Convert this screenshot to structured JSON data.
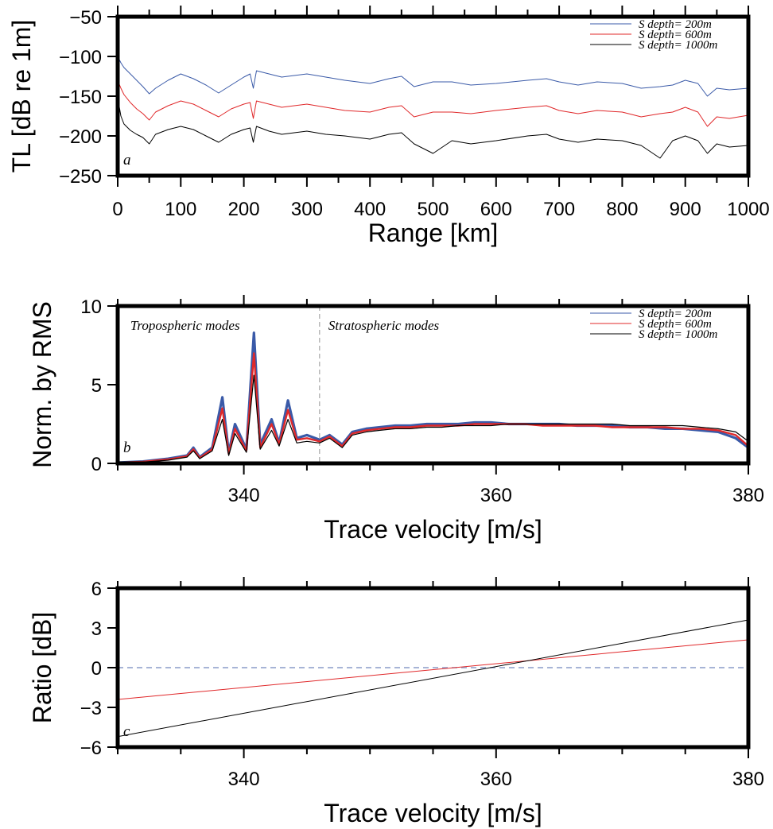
{
  "colors": {
    "blue": "#3a5aa8",
    "red": "#e0282a",
    "black": "#000000",
    "zero": "#8a9cc8",
    "divider": "#b8b8b8"
  },
  "chart_data": [
    {
      "type": "line",
      "panel_label": "a",
      "xlabel": "Range [km]",
      "ylabel": "TL [dB re 1m]",
      "xlim": [
        0,
        1000
      ],
      "ylim": [
        -250,
        -50
      ],
      "xticks": [
        0,
        100,
        200,
        300,
        400,
        500,
        600,
        700,
        800,
        900,
        1000
      ],
      "yticks": [
        -250,
        -200,
        -150,
        -100,
        -50
      ],
      "legend_position": "top-right",
      "series": [
        {
          "name": "S depth= 200m",
          "color": "blue",
          "x": [
            0,
            5,
            10,
            20,
            30,
            40,
            50,
            60,
            80,
            100,
            120,
            140,
            160,
            180,
            200,
            210,
            215,
            220,
            240,
            260,
            280,
            300,
            330,
            360,
            400,
            430,
            450,
            470,
            500,
            530,
            560,
            600,
            650,
            680,
            700,
            730,
            760,
            800,
            830,
            860,
            880,
            900,
            920,
            935,
            950,
            970,
            1000
          ],
          "y": [
            -100,
            -108,
            -114,
            -122,
            -130,
            -138,
            -147,
            -140,
            -130,
            -122,
            -128,
            -136,
            -146,
            -136,
            -126,
            -122,
            -140,
            -118,
            -122,
            -126,
            -124,
            -122,
            -126,
            -130,
            -134,
            -128,
            -125,
            -138,
            -132,
            -132,
            -136,
            -134,
            -130,
            -128,
            -132,
            -136,
            -132,
            -134,
            -140,
            -138,
            -136,
            -130,
            -134,
            -150,
            -140,
            -142,
            -140
          ]
        },
        {
          "name": "S depth= 600m",
          "color": "red",
          "x": [
            0,
            5,
            10,
            20,
            30,
            40,
            50,
            60,
            80,
            100,
            120,
            140,
            160,
            180,
            200,
            210,
            215,
            220,
            240,
            260,
            280,
            300,
            330,
            360,
            400,
            430,
            450,
            470,
            500,
            530,
            560,
            600,
            650,
            680,
            700,
            730,
            760,
            800,
            830,
            860,
            880,
            900,
            920,
            935,
            950,
            970,
            1000
          ],
          "y": [
            -130,
            -140,
            -148,
            -158,
            -166,
            -172,
            -180,
            -170,
            -162,
            -156,
            -160,
            -168,
            -176,
            -166,
            -160,
            -158,
            -178,
            -156,
            -160,
            -164,
            -162,
            -160,
            -164,
            -168,
            -170,
            -164,
            -162,
            -176,
            -170,
            -170,
            -172,
            -168,
            -164,
            -162,
            -168,
            -172,
            -168,
            -170,
            -176,
            -172,
            -170,
            -164,
            -170,
            -188,
            -176,
            -178,
            -174
          ]
        },
        {
          "name": "S depth= 1000m",
          "color": "black",
          "x": [
            0,
            5,
            10,
            20,
            30,
            40,
            50,
            60,
            80,
            100,
            120,
            140,
            160,
            180,
            200,
            210,
            215,
            220,
            240,
            260,
            280,
            300,
            330,
            360,
            400,
            430,
            450,
            470,
            500,
            530,
            560,
            600,
            650,
            680,
            700,
            730,
            760,
            800,
            830,
            860,
            880,
            900,
            920,
            935,
            950,
            970,
            1000
          ],
          "y": [
            -152,
            -175,
            -185,
            -193,
            -198,
            -202,
            -210,
            -198,
            -192,
            -188,
            -192,
            -200,
            -208,
            -198,
            -192,
            -190,
            -208,
            -188,
            -194,
            -198,
            -196,
            -194,
            -198,
            -200,
            -204,
            -198,
            -196,
            -210,
            -222,
            -206,
            -210,
            -206,
            -200,
            -198,
            -204,
            -208,
            -204,
            -206,
            -212,
            -228,
            -206,
            -200,
            -206,
            -222,
            -210,
            -214,
            -212
          ]
        }
      ]
    },
    {
      "type": "line",
      "panel_label": "b",
      "xlabel": "Trace velocity [m/s]",
      "ylabel": "Norm. by RMS",
      "xlim": [
        330,
        380
      ],
      "ylim": [
        0,
        10
      ],
      "xticks": [
        340,
        360,
        380
      ],
      "yticks": [
        0,
        5,
        10
      ],
      "legend_position": "top-right",
      "annotations": [
        {
          "text": "Tropospheric modes",
          "x": 331,
          "y": 8.8
        },
        {
          "text": "Stratospheric modes",
          "x": 346.7,
          "y": 8.8
        }
      ],
      "divider_x": 346,
      "series": [
        {
          "name": "S depth= 200m",
          "color": "blue",
          "x": [
            330,
            332,
            334,
            335.5,
            336,
            336.5,
            337.5,
            338.3,
            338.8,
            339.3,
            340.2,
            340.8,
            341.3,
            342.2,
            342.8,
            343.5,
            344.2,
            345,
            346,
            346.8,
            347.8,
            348.6,
            349.7,
            350.8,
            352,
            353.2,
            354.5,
            355.7,
            357,
            358.3,
            359.6,
            361,
            362.3,
            363.7,
            365,
            366.4,
            367.8,
            369.2,
            370.6,
            372,
            373.4,
            374.8,
            376.2,
            377.6,
            379,
            380
          ],
          "y": [
            0.05,
            0.12,
            0.3,
            0.5,
            1.0,
            0.4,
            1.0,
            4.2,
            0.7,
            2.5,
            0.9,
            8.3,
            1.2,
            2.8,
            1.3,
            4.0,
            1.6,
            1.8,
            1.5,
            1.8,
            1.2,
            2.0,
            2.2,
            2.3,
            2.4,
            2.4,
            2.5,
            2.5,
            2.5,
            2.6,
            2.6,
            2.5,
            2.5,
            2.5,
            2.5,
            2.4,
            2.4,
            2.4,
            2.3,
            2.3,
            2.2,
            2.2,
            2.1,
            2.0,
            1.6,
            1.0
          ]
        },
        {
          "name": "S depth= 600m",
          "color": "red",
          "x": [
            330,
            332,
            334,
            335.5,
            336,
            336.5,
            337.5,
            338.3,
            338.8,
            339.3,
            340.2,
            340.8,
            341.3,
            342.2,
            342.8,
            343.5,
            344.2,
            345,
            346,
            346.8,
            347.8,
            348.6,
            349.7,
            350.8,
            352,
            353.2,
            354.5,
            355.7,
            357,
            358.3,
            359.6,
            361,
            362.3,
            363.7,
            365,
            366.4,
            367.8,
            369.2,
            370.6,
            372,
            373.4,
            374.8,
            376.2,
            377.6,
            379,
            380
          ],
          "y": [
            0.05,
            0.1,
            0.25,
            0.45,
            0.9,
            0.35,
            0.9,
            3.5,
            0.6,
            2.2,
            0.8,
            7.0,
            1.0,
            2.5,
            1.2,
            3.4,
            1.5,
            1.6,
            1.4,
            1.7,
            1.1,
            1.9,
            2.1,
            2.2,
            2.3,
            2.3,
            2.4,
            2.4,
            2.4,
            2.5,
            2.5,
            2.5,
            2.5,
            2.4,
            2.4,
            2.4,
            2.4,
            2.3,
            2.3,
            2.3,
            2.3,
            2.2,
            2.2,
            2.1,
            1.8,
            1.1
          ]
        },
        {
          "name": "S depth= 1000m",
          "color": "black",
          "x": [
            330,
            332,
            334,
            335.5,
            336,
            336.5,
            337.5,
            338.3,
            338.8,
            339.3,
            340.2,
            340.8,
            341.3,
            342.2,
            342.8,
            343.5,
            344.2,
            345,
            346,
            346.8,
            347.8,
            348.6,
            349.7,
            350.8,
            352,
            353.2,
            354.5,
            355.7,
            357,
            358.3,
            359.6,
            361,
            362.3,
            363.7,
            365,
            366.4,
            367.8,
            369.2,
            370.6,
            372,
            373.4,
            374.8,
            376.2,
            377.6,
            379,
            380
          ],
          "y": [
            0.05,
            0.08,
            0.2,
            0.4,
            0.8,
            0.3,
            0.8,
            2.8,
            0.5,
            1.9,
            0.7,
            5.6,
            0.9,
            2.1,
            1.1,
            2.8,
            1.3,
            1.4,
            1.3,
            1.6,
            1.0,
            1.8,
            2.0,
            2.1,
            2.2,
            2.2,
            2.3,
            2.3,
            2.4,
            2.4,
            2.4,
            2.5,
            2.5,
            2.5,
            2.5,
            2.5,
            2.5,
            2.5,
            2.4,
            2.4,
            2.4,
            2.4,
            2.3,
            2.2,
            2.0,
            1.4
          ]
        }
      ]
    },
    {
      "type": "line",
      "panel_label": "c",
      "xlabel": "Trace velocity [m/s]",
      "ylabel": "Ratio [dB]",
      "xlim": [
        330,
        380
      ],
      "ylim": [
        -6,
        6
      ],
      "xticks": [
        340,
        360,
        380
      ],
      "yticks": [
        -6,
        -3,
        0,
        3,
        6
      ],
      "zero_line": 0,
      "series": [
        {
          "color": "red",
          "x": [
            330,
            380
          ],
          "y": [
            -2.4,
            2.1
          ]
        },
        {
          "color": "black",
          "x": [
            330,
            380
          ],
          "y": [
            -5.2,
            3.6
          ]
        }
      ]
    }
  ]
}
